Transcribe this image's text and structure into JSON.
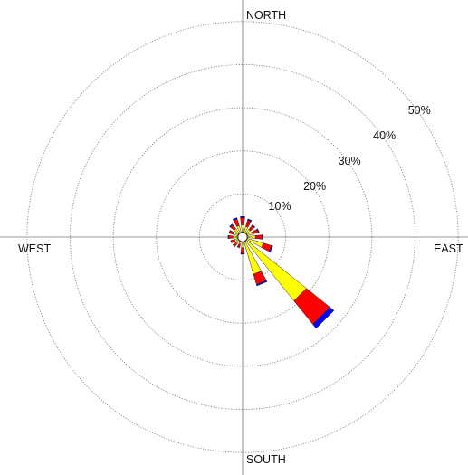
{
  "chart_data": {
    "type": "windrose",
    "title": "",
    "directions": [
      "NORTH",
      "EAST",
      "SOUTH",
      "WEST"
    ],
    "rings": [
      10,
      20,
      30,
      40,
      50
    ],
    "ring_labels": [
      "10%",
      "20%",
      "30%",
      "40%",
      "50%"
    ],
    "rmax": 55,
    "calm_percent": 1,
    "band_colors": [
      "#ffff00",
      "#ff0000",
      "#0000ff"
    ],
    "sectors": [
      {
        "dir": 0,
        "bands": [
          1.8,
          1.7,
          0.3
        ]
      },
      {
        "dir": 22.5,
        "bands": [
          1.6,
          1.5,
          0.3
        ]
      },
      {
        "dir": 45,
        "bands": [
          1.3,
          1.2,
          0.2
        ]
      },
      {
        "dir": 67.5,
        "bands": [
          1.5,
          1.3,
          0.2
        ]
      },
      {
        "dir": 90,
        "bands": [
          2.0,
          1.6,
          0.2
        ]
      },
      {
        "dir": 112.5,
        "bands": [
          4.0,
          2.0,
          0.3
        ]
      },
      {
        "dir": 135,
        "bands": [
          18.0,
          7.0,
          1.2
        ]
      },
      {
        "dir": 157.5,
        "bands": [
          8.0,
          2.5,
          0.3
        ]
      },
      {
        "dir": 180,
        "bands": [
          1.5,
          1.3,
          0.2
        ]
      },
      {
        "dir": 202.5,
        "bands": [
          0.8,
          0.7,
          0.1
        ]
      },
      {
        "dir": 225,
        "bands": [
          1.0,
          0.8,
          0.1
        ]
      },
      {
        "dir": 247.5,
        "bands": [
          1.0,
          0.8,
          0.1
        ]
      },
      {
        "dir": 270,
        "bands": [
          1.3,
          1.0,
          0.1
        ]
      },
      {
        "dir": 292.5,
        "bands": [
          1.2,
          1.0,
          0.1
        ]
      },
      {
        "dir": 315,
        "bands": [
          1.5,
          1.2,
          0.2
        ]
      },
      {
        "dir": 337.5,
        "bands": [
          1.8,
          1.6,
          0.3
        ]
      }
    ]
  }
}
